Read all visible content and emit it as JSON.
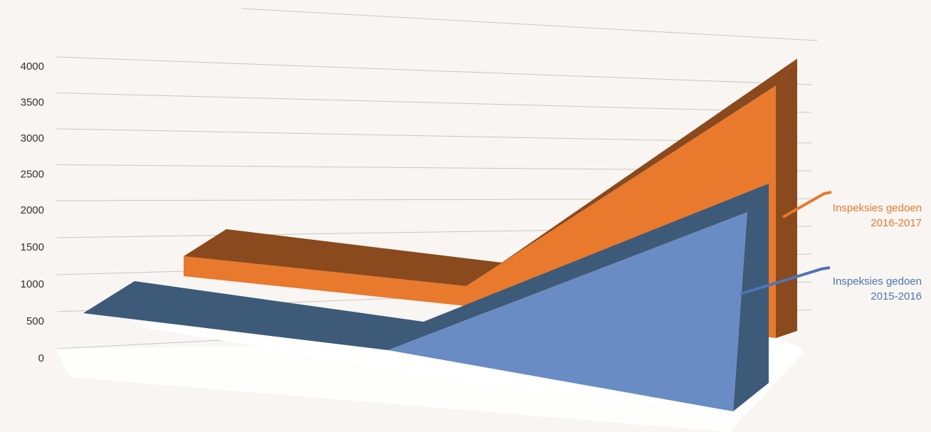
{
  "chart_data": {
    "type": "area",
    "subtype": "3d",
    "title": "",
    "xlabel": "",
    "ylabel": "",
    "ylim": [
      0,
      4500
    ],
    "y_ticks": [
      "0",
      "500",
      "1000",
      "1500",
      "2000",
      "2500",
      "3000",
      "3500",
      "4000"
    ],
    "grid": true,
    "legend_placement": "right",
    "categories": [
      "",
      "",
      ""
    ],
    "series": [
      {
        "name": "Inspeksies gedoen 2016-2017",
        "values": [
          300,
          300,
          3800
        ],
        "color": "#e8792d",
        "side_color": "#8a4a1e"
      },
      {
        "name": "Inspeksies gedoen 2015-2016",
        "values": [
          300,
          300,
          3000
        ],
        "color": "#6a8cc4",
        "side_color": "#3d5a78"
      }
    ],
    "legend": {
      "series_2016": {
        "line1": "Inspeksies gedoen",
        "line2": "2016-2017"
      },
      "series_2015": {
        "line1": "Inspeksies gedoen",
        "line2": "2015-2016"
      }
    }
  }
}
